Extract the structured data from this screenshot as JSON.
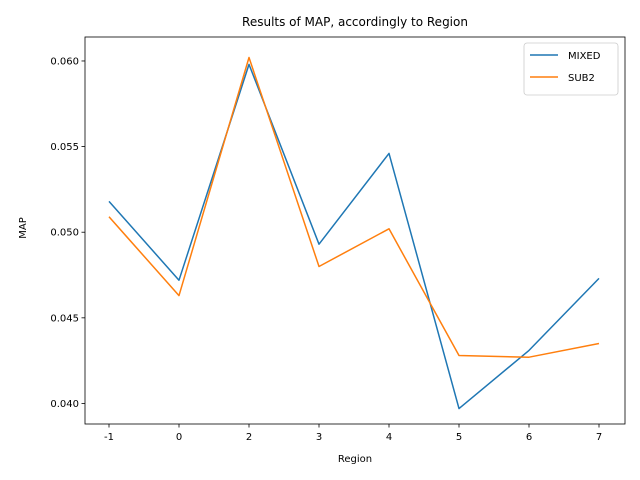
{
  "chart_data": {
    "type": "line",
    "title": "Results of MAP, accordingly to Region",
    "xlabel": "Region",
    "ylabel": "MAP",
    "categories": [
      "-1",
      "0",
      "2",
      "3",
      "4",
      "5",
      "6",
      "7"
    ],
    "ylim": [
      0.0388,
      0.0614
    ],
    "yticks": [
      "0.040",
      "0.045",
      "0.050",
      "0.055",
      "0.060"
    ],
    "ytick_values": [
      0.04,
      0.045,
      0.05,
      0.055,
      0.06
    ],
    "grid": false,
    "legend_position": "top-right",
    "series": [
      {
        "name": "MIXED",
        "color": "#1f77b4",
        "values": [
          0.0518,
          0.0472,
          0.0598,
          0.0493,
          0.0546,
          0.0397,
          0.0431,
          0.0473
        ]
      },
      {
        "name": "SUB2",
        "color": "#ff7f0e",
        "values": [
          0.0509,
          0.0463,
          0.0602,
          0.048,
          0.0502,
          0.0428,
          0.0427,
          0.0435
        ]
      }
    ]
  }
}
